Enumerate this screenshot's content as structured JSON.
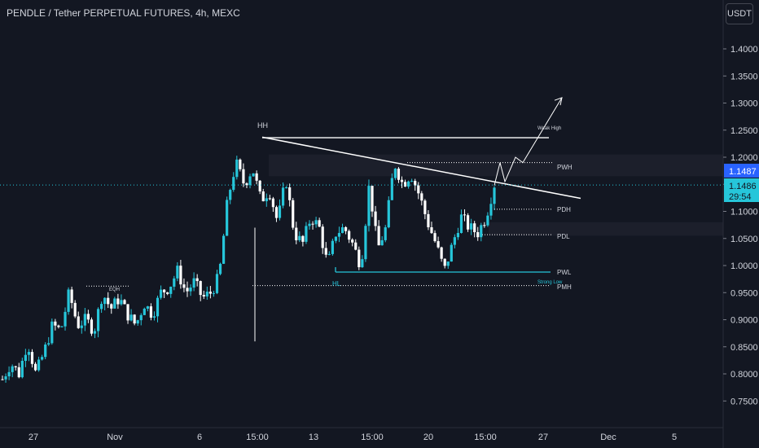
{
  "title": "PENDLE / Tether PERPETUAL FUTURES, 4h, MEXC",
  "currency_button": "USDT",
  "colors": {
    "background": "#131722",
    "up": "#26c6da",
    "down": "#ffffff",
    "axis_text": "#d1d4dc",
    "line": "#ffffff",
    "zone": "#1c1f2b"
  },
  "chart_data": {
    "type": "candlestick",
    "ylim": [
      0.71,
      1.44
    ],
    "y_ticks": [
      "1.4000",
      "1.3500",
      "1.3000",
      "1.2500",
      "1.2000",
      "1.1500",
      "1.1000",
      "1.0500",
      "1.0000",
      "0.9500",
      "0.9000",
      "0.8500",
      "0.8000",
      "0.7500"
    ],
    "y_tick_values": [
      1.4,
      1.35,
      1.3,
      1.25,
      1.2,
      1.15,
      1.1,
      1.05,
      1.0,
      0.95,
      0.9,
      0.85,
      0.8,
      0.75
    ],
    "x_ticks": [
      "27",
      "Nov",
      "6",
      "15:00",
      "13",
      "15:00",
      "20",
      "15:00",
      "27",
      "Dec",
      "5"
    ],
    "last_price": "1.1486",
    "countdown": "29:54",
    "last_price_label_2": "1.1487",
    "close_path": [
      0.79,
      0.82,
      0.8,
      0.86,
      0.8,
      0.84,
      0.89,
      0.88,
      0.95,
      0.89,
      0.9,
      0.88,
      0.95,
      0.92,
      0.94,
      0.91,
      0.89,
      0.93,
      0.91,
      0.95,
      0.96,
      0.99,
      0.95,
      0.97,
      0.94,
      0.95,
      0.98,
      1.12,
      1.19,
      1.15,
      1.18,
      1.12,
      1.14,
      1.08,
      1.16,
      1.06,
      1.04,
      1.09,
      1.07,
      1.0,
      1.06,
      1.07,
      1.04,
      1.0,
      1.15,
      1.03,
      1.07,
      1.19,
      1.15,
      1.17,
      1.13,
      1.08,
      1.04,
      0.99,
      1.04,
      1.09,
      1.07,
      1.06,
      1.09,
      1.15
    ],
    "annotations": {
      "hh": "HH",
      "hl": "HL",
      "eqh": "EQH",
      "weak_high": "Weak High",
      "strong_low": "Strong Low",
      "pwh": "PWH",
      "pdh": "PDH",
      "pdl": "PDL",
      "pwl": "PWL",
      "pmh": "PMH"
    },
    "levels": {
      "hh": 1.236,
      "pwh": 1.19,
      "pdh": 1.104,
      "pdl": 1.057,
      "pwl": 0.988,
      "pmh": 0.963,
      "eqh": 0.962,
      "last": 1.1486
    }
  }
}
